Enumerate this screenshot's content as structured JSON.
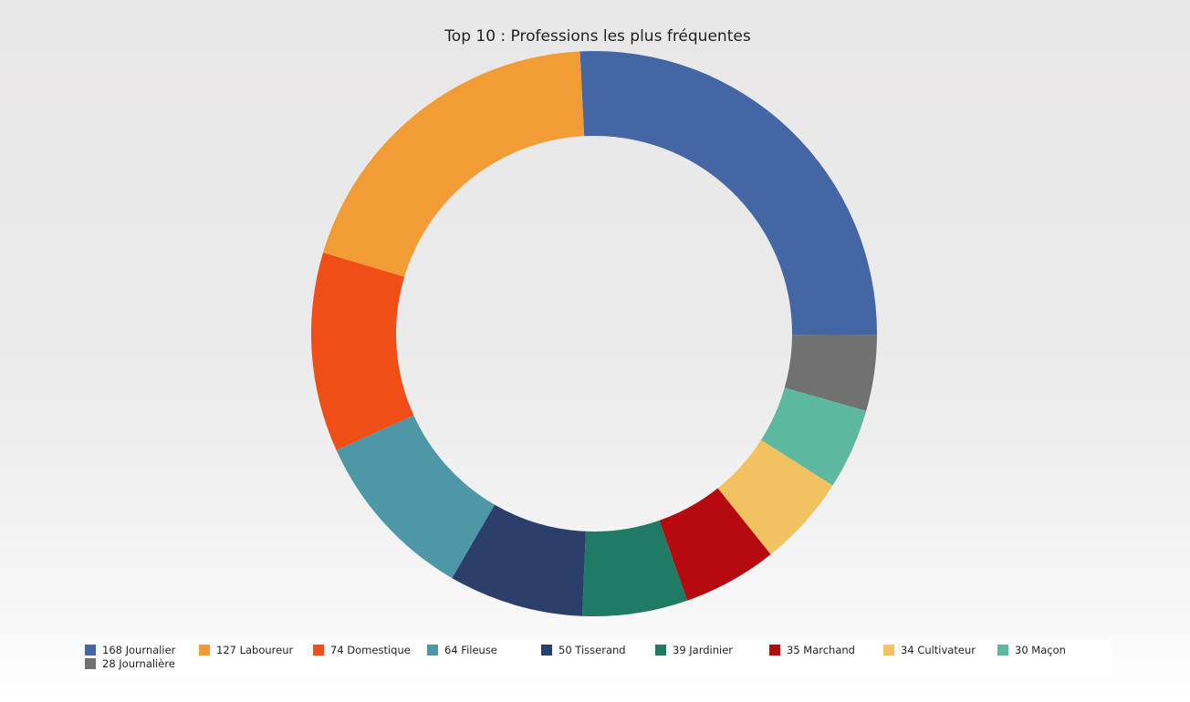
{
  "chart_data": {
    "type": "pie",
    "title": "Top 10 : Professions les plus fréquentes",
    "donut": true,
    "legend_position": "bottom",
    "slices": [
      {
        "label": "Journalier",
        "value": 168,
        "color": "#4466a4",
        "legend_text": "168 Journalier"
      },
      {
        "label": "Journalière",
        "value": 28,
        "color": "#717171",
        "legend_text": "28 Journalière"
      },
      {
        "label": "Maçon",
        "value": 30,
        "color": "#5db8a0",
        "legend_text": "30 Maçon"
      },
      {
        "label": "Cultivateur",
        "value": 34,
        "color": "#f1c25f",
        "legend_text": "34 Cultivateur"
      },
      {
        "label": "Marchand",
        "value": 35,
        "color": "#b50a10",
        "legend_text": "35 Marchand"
      },
      {
        "label": "Jardinier",
        "value": 39,
        "color": "#1f7b64",
        "legend_text": "39 Jardinier"
      },
      {
        "label": "Tisserand",
        "value": 50,
        "color": "#2b3f6b",
        "legend_text": "50 Tisserand"
      },
      {
        "label": "Fileuse",
        "value": 64,
        "color": "#4d97a7",
        "legend_text": "64 Fileuse"
      },
      {
        "label": "Domestique",
        "value": 74,
        "color": "#f04e16",
        "legend_text": "74 Domestique"
      },
      {
        "label": "Laboureur",
        "value": 127,
        "color": "#f29c36",
        "legend_text": "127 Laboureur"
      }
    ],
    "legend_order": [
      "Journalier",
      "Laboureur",
      "Domestique",
      "Fileuse",
      "Tisserand",
      "Jardinier",
      "Marchand",
      "Cultivateur",
      "Maçon",
      "Journalière"
    ]
  }
}
